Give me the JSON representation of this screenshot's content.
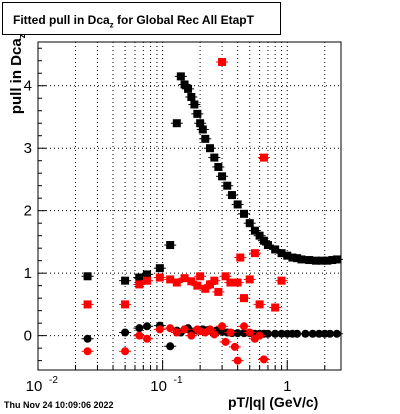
{
  "title": {
    "main": "Fitted pull in Dca",
    "sub": "z",
    "rest": " for Global Rec All EtapT"
  },
  "ylabel": {
    "main": "pull in Dca",
    "sub": "z"
  },
  "xlabel": "pT/|q| (GeV/c)",
  "datestamp": "Thu Nov 24 10:09:06 2022",
  "colors": {
    "black_series": "#000000",
    "red_series": "#ff0000",
    "axis": "#000000",
    "grid": "#000000"
  },
  "chart_data": {
    "type": "scatter",
    "x_scale": "log",
    "xlim": [
      0.01,
      2.7
    ],
    "ylim": [
      -0.55,
      4.7
    ],
    "grid": true,
    "x_ticks": [
      {
        "value": 0.01,
        "label": "10",
        "sup": "-2"
      },
      {
        "value": 0.1,
        "label": "10",
        "sup": "-1"
      },
      {
        "value": 1,
        "label": "1",
        "sup": ""
      }
    ],
    "y_ticks": [
      0,
      1,
      2,
      3,
      4
    ],
    "series": [
      {
        "marker": "square",
        "color": "black",
        "x": [
          0.025,
          0.05,
          0.065,
          0.075,
          0.095,
          0.115,
          0.13,
          0.14,
          0.15,
          0.16,
          0.17,
          0.18,
          0.19,
          0.2,
          0.21,
          0.22,
          0.24,
          0.26,
          0.28,
          0.3,
          0.33,
          0.36,
          0.4,
          0.45,
          0.5,
          0.55,
          0.6,
          0.65,
          0.7,
          0.8,
          0.9,
          1.0,
          1.1,
          1.2,
          1.3,
          1.5,
          1.7,
          1.9,
          2.1,
          2.3,
          2.5
        ],
        "y": [
          0.95,
          0.88,
          0.93,
          0.98,
          1.08,
          1.45,
          3.4,
          4.15,
          4.02,
          3.95,
          3.82,
          3.7,
          3.55,
          3.4,
          3.3,
          3.15,
          3.0,
          2.85,
          2.7,
          2.55,
          2.4,
          2.25,
          2.1,
          1.95,
          1.8,
          1.68,
          1.6,
          1.52,
          1.45,
          1.38,
          1.32,
          1.28,
          1.25,
          1.24,
          1.22,
          1.21,
          1.2,
          1.2,
          1.2,
          1.21,
          1.22
        ]
      },
      {
        "marker": "square",
        "color": "red",
        "x": [
          0.025,
          0.05,
          0.065,
          0.075,
          0.095,
          0.115,
          0.13,
          0.15,
          0.17,
          0.19,
          0.2,
          0.22,
          0.24,
          0.26,
          0.28,
          0.3,
          0.32,
          0.35,
          0.4,
          0.42,
          0.45,
          0.5,
          0.55,
          0.6,
          0.65,
          0.8,
          0.9
        ],
        "y": [
          0.5,
          0.5,
          0.82,
          0.88,
          0.93,
          0.9,
          0.85,
          0.92,
          0.87,
          0.8,
          0.95,
          0.75,
          0.82,
          0.88,
          0.7,
          4.38,
          0.95,
          0.85,
          0.85,
          1.25,
          0.6,
          0.9,
          1.32,
          0.5,
          2.85,
          0.45,
          0.88
        ]
      },
      {
        "marker": "circle",
        "color": "black",
        "x": [
          0.025,
          0.05,
          0.065,
          0.075,
          0.095,
          0.115,
          0.13,
          0.14,
          0.15,
          0.16,
          0.17,
          0.19,
          0.21,
          0.23,
          0.25,
          0.27,
          0.3,
          0.33,
          0.36,
          0.4,
          0.45,
          0.5,
          0.55,
          0.6,
          0.65,
          0.7,
          0.8,
          0.9,
          1.0,
          1.1,
          1.2,
          1.4,
          1.6,
          1.8,
          2.0,
          2.2,
          2.5
        ],
        "y": [
          -0.05,
          0.05,
          0.12,
          0.15,
          0.16,
          -0.17,
          0.08,
          0.05,
          0.1,
          0.12,
          0.05,
          0.08,
          0.1,
          0.09,
          0.07,
          0.08,
          0.06,
          0.05,
          0.04,
          0.04,
          0.04,
          0.04,
          0.03,
          0.03,
          0.03,
          0.03,
          0.03,
          0.03,
          0.03,
          0.03,
          0.03,
          0.03,
          0.03,
          0.03,
          0.03,
          0.03,
          0.03
        ]
      },
      {
        "marker": "circle",
        "color": "red",
        "x": [
          0.025,
          0.05,
          0.065,
          0.075,
          0.095,
          0.115,
          0.13,
          0.15,
          0.17,
          0.19,
          0.2,
          0.22,
          0.24,
          0.26,
          0.3,
          0.32,
          0.35,
          0.38,
          0.4,
          0.45,
          0.5,
          0.55,
          0.6,
          0.65
        ],
        "y": [
          -0.25,
          -0.25,
          0.0,
          -0.05,
          0.1,
          0.12,
          0.05,
          0.1,
          0.0,
          0.1,
          0.07,
          0.05,
          0.1,
          0.02,
          0.15,
          -0.1,
          0.05,
          -0.18,
          -0.4,
          0.15,
          0.05,
          -0.05,
          0.0,
          -0.38
        ]
      }
    ]
  }
}
